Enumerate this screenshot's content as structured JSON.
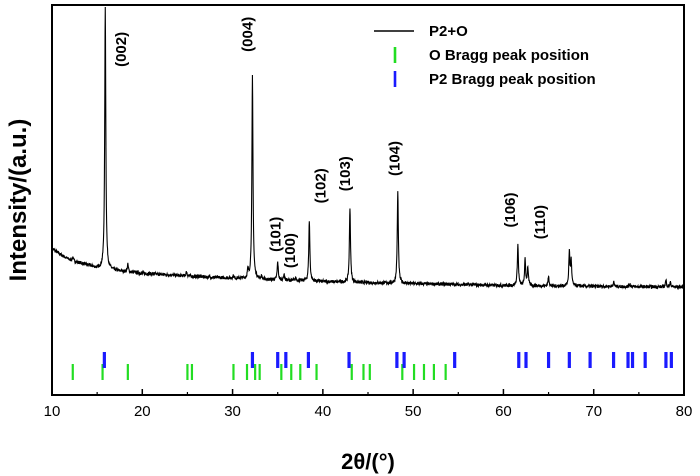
{
  "chart_data": {
    "type": "line",
    "xlabel": "2θ/(°)",
    "ylabel": "Intensity/(a.u.)",
    "xlim": [
      10,
      80
    ],
    "ylim": [
      0,
      100
    ],
    "xticks": [
      10,
      20,
      30,
      40,
      50,
      60,
      70,
      80
    ],
    "y_tick_labels": "none",
    "grid": false,
    "legend": {
      "position": "top-right",
      "entries": [
        {
          "label": "P2+O",
          "marker": "line",
          "color": "#000000"
        },
        {
          "label": "O  Bragg peak position",
          "marker": "tick",
          "color": "#22dd22"
        },
        {
          "label": "P2 Bragg peak position",
          "marker": "tick",
          "color": "#1a1aff"
        }
      ]
    },
    "series": [
      {
        "name": "P2+O",
        "color": "#000000",
        "background": {
          "x": [
            10,
            11,
            12,
            14,
            15,
            17,
            20,
            25,
            30,
            35,
            40,
            45,
            50,
            55,
            60,
            65,
            70,
            75,
            80
          ],
          "y": [
            20.3,
            18.2,
            16.5,
            14.8,
            13.8,
            13.0,
            12.1,
            11.2,
            10.5,
            9.9,
            9.4,
            9.0,
            8.7,
            8.4,
            8.1,
            7.9,
            7.8,
            7.7,
            7.6
          ]
        },
        "peaks": [
          {
            "x": 12.3,
            "y": 17.5
          },
          {
            "x": 15.9,
            "y": 100
          },
          {
            "x": 18.4,
            "y": 15.0
          },
          {
            "x": 24.9,
            "y": 12.6
          },
          {
            "x": 30.1,
            "y": 11.3
          },
          {
            "x": 31.7,
            "y": 12.9
          },
          {
            "x": 32.2,
            "y": 77.0
          },
          {
            "x": 33.2,
            "y": 11.0
          },
          {
            "x": 35.0,
            "y": 15.8
          },
          {
            "x": 35.7,
            "y": 11.7
          },
          {
            "x": 37.0,
            "y": 10.6
          },
          {
            "x": 38.5,
            "y": 29.5
          },
          {
            "x": 43.0,
            "y": 34.0
          },
          {
            "x": 48.3,
            "y": 39.0
          },
          {
            "x": 61.6,
            "y": 21.5
          },
          {
            "x": 62.4,
            "y": 16.5
          },
          {
            "x": 62.7,
            "y": 14.0
          },
          {
            "x": 65.0,
            "y": 11.0
          },
          {
            "x": 67.3,
            "y": 19.0
          },
          {
            "x": 67.5,
            "y": 16.0
          },
          {
            "x": 72.2,
            "y": 9.3
          },
          {
            "x": 74.0,
            "y": 8.7
          },
          {
            "x": 78.0,
            "y": 9.8
          },
          {
            "x": 78.5,
            "y": 9.0
          }
        ]
      }
    ],
    "bragg_positions": {
      "O": [
        12.3,
        15.6,
        18.4,
        25.0,
        25.5,
        30.1,
        31.6,
        32.5,
        33.0,
        35.4,
        36.5,
        37.5,
        39.3,
        43.2,
        44.5,
        45.2,
        48.8,
        50.1,
        51.2,
        52.3,
        53.6
      ],
      "P2": [
        15.8,
        32.2,
        35.0,
        35.9,
        38.4,
        42.9,
        48.2,
        49.0,
        54.6,
        61.7,
        62.5,
        65.0,
        67.3,
        69.6,
        72.2,
        73.8,
        74.3,
        75.7,
        78.0,
        78.6
      ]
    },
    "annotations": [
      {
        "text": "(002)",
        "x": 18.2,
        "y": 86
      },
      {
        "text": "(004)",
        "x": 32.2,
        "y": 91
      },
      {
        "text": "(101)",
        "x": 35.3,
        "y": 25
      },
      {
        "text": "(100)",
        "x": 36.9,
        "y": 19.6
      },
      {
        "text": "(102)",
        "x": 40.3,
        "y": 41
      },
      {
        "text": "(103)",
        "x": 43.0,
        "y": 45
      },
      {
        "text": "(104)",
        "x": 48.5,
        "y": 50
      },
      {
        "text": "(106)",
        "x": 61.3,
        "y": 33
      },
      {
        "text": "(110)",
        "x": 64.6,
        "y": 29
      }
    ]
  }
}
